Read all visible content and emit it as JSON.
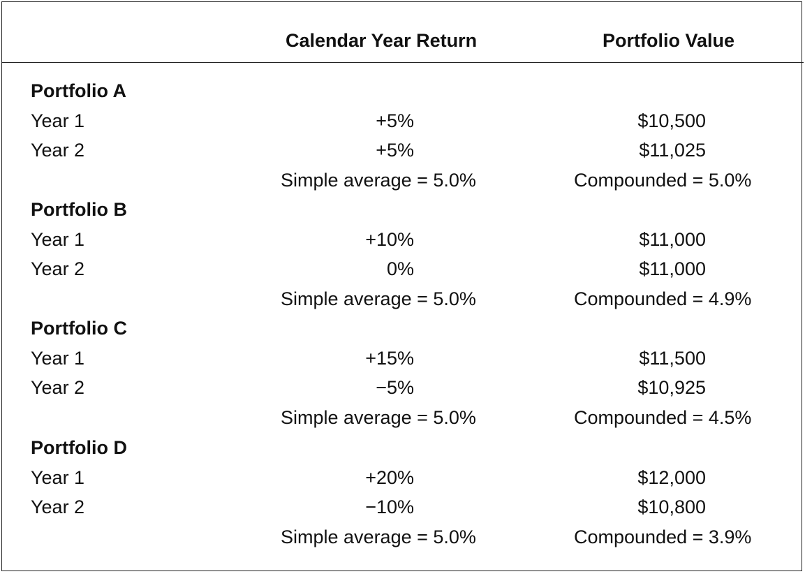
{
  "headers": {
    "calendar_year_return": "Calendar Year Return",
    "portfolio_value": "Portfolio Value"
  },
  "portfolios": [
    {
      "name": "Portfolio A",
      "rows": [
        {
          "label": "Year 1",
          "return": "+5%",
          "value": "$10,500"
        },
        {
          "label": "Year 2",
          "return": "+5%",
          "value": "$11,025"
        }
      ],
      "simple_average": "Simple average = 5.0%",
      "compounded": "Compounded = 5.0%"
    },
    {
      "name": "Portfolio B",
      "rows": [
        {
          "label": "Year 1",
          "return": "+10%",
          "value": "$11,000"
        },
        {
          "label": "Year 2",
          "return": "0%",
          "value": "$11,000"
        }
      ],
      "simple_average": "Simple average = 5.0%",
      "compounded": "Compounded = 4.9%"
    },
    {
      "name": "Portfolio C",
      "rows": [
        {
          "label": "Year 1",
          "return": "+15%",
          "value": "$11,500"
        },
        {
          "label": "Year 2",
          "return": "−5%",
          "value": "$10,925"
        }
      ],
      "simple_average": "Simple average = 5.0%",
      "compounded": "Compounded = 4.5%"
    },
    {
      "name": "Portfolio D",
      "rows": [
        {
          "label": "Year 1",
          "return": "+20%",
          "value": "$12,000"
        },
        {
          "label": "Year 2",
          "return": "−10%",
          "value": "$10,800"
        }
      ],
      "simple_average": "Simple average = 5.0%",
      "compounded": "Compounded = 3.9%"
    }
  ]
}
